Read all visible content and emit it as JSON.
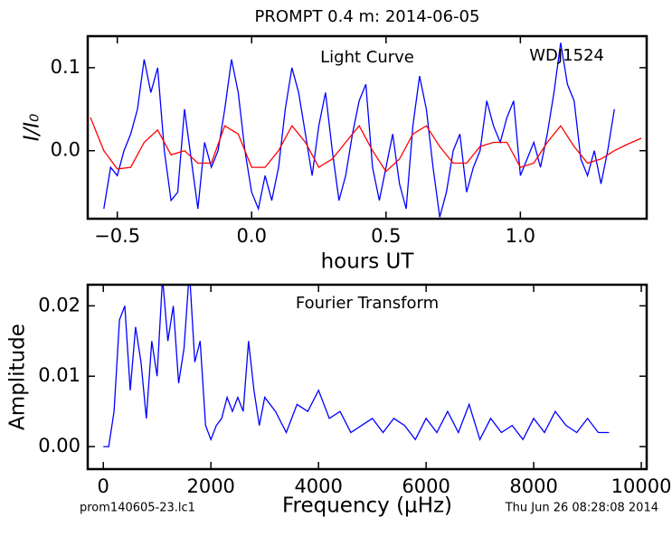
{
  "chart_data": [
    {
      "type": "line",
      "title": "PROMPT 0.4 m:  2014-06-05",
      "annotations": [
        "Light Curve",
        "WDJ1524"
      ],
      "xlabel": "hours UT",
      "ylabel": "I/I₀",
      "xlim": [
        -0.61,
        1.47
      ],
      "ylim": [
        -0.082,
        0.138
      ],
      "xticks": [
        {
          "value": -0.5,
          "label": "−0.5"
        },
        {
          "value": 0,
          "label": "0.0"
        },
        {
          "value": 0.5,
          "label": "0.5"
        },
        {
          "value": 1,
          "label": "1.0"
        }
      ],
      "yticks": [
        {
          "value": 0,
          "label": "0.0"
        },
        0.1
      ],
      "series": [
        {
          "color": "#0000ff",
          "x": [
            -0.55,
            -0.525,
            -0.5,
            -0.475,
            -0.45,
            -0.425,
            -0.4,
            -0.375,
            -0.35,
            -0.325,
            -0.3,
            -0.275,
            -0.25,
            -0.225,
            -0.2,
            -0.175,
            -0.15,
            -0.125,
            -0.1,
            -0.075,
            -0.05,
            -0.025,
            0,
            0.025,
            0.05,
            0.075,
            0.1,
            0.125,
            0.15,
            0.175,
            0.2,
            0.225,
            0.25,
            0.275,
            0.3,
            0.325,
            0.35,
            0.375,
            0.4,
            0.425,
            0.45,
            0.475,
            0.5,
            0.525,
            0.55,
            0.575,
            0.6,
            0.625,
            0.65,
            0.675,
            0.7,
            0.725,
            0.75,
            0.775,
            0.8,
            0.825,
            0.85,
            0.875,
            0.9,
            0.925,
            0.95,
            0.975,
            1,
            1.025,
            1.05,
            1.075,
            1.1,
            1.125,
            1.15,
            1.175,
            1.2,
            1.225,
            1.25,
            1.275,
            1.3,
            1.325,
            1.35
          ],
          "values": [
            -0.07,
            -0.02,
            -0.03,
            0,
            0.02,
            0.05,
            0.11,
            0.07,
            0.1,
            0,
            -0.06,
            -0.05,
            0.05,
            -0.01,
            -0.07,
            0.01,
            -0.02,
            0,
            0.05,
            0.11,
            0.07,
            0,
            -0.05,
            -0.07,
            -0.03,
            -0.06,
            -0.02,
            0.05,
            0.1,
            0.07,
            0.02,
            -0.03,
            0.03,
            0.07,
            0,
            -0.06,
            -0.03,
            0.02,
            0.06,
            0.08,
            -0.02,
            -0.06,
            -0.02,
            0.02,
            -0.04,
            -0.07,
            0.03,
            0.09,
            0.05,
            -0.02,
            -0.08,
            -0.05,
            0,
            0.02,
            -0.05,
            -0.02,
            0,
            0.06,
            0.03,
            0.01,
            0.04,
            0.06,
            -0.03,
            -0.01,
            0.01,
            -0.02,
            0.02,
            0.07,
            0.13,
            0.08,
            0.06,
            -0.01,
            -0.03,
            0,
            -0.04,
            0,
            0.05
          ]
        },
        {
          "color": "#ff0000",
          "x": [
            -0.6,
            -0.55,
            -0.5,
            -0.45,
            -0.4,
            -0.35,
            -0.3,
            -0.25,
            -0.2,
            -0.15,
            -0.1,
            -0.05,
            0,
            0.05,
            0.1,
            0.15,
            0.2,
            0.25,
            0.3,
            0.35,
            0.4,
            0.45,
            0.5,
            0.55,
            0.6,
            0.65,
            0.7,
            0.75,
            0.8,
            0.85,
            0.9,
            0.95,
            1,
            1.05,
            1.1,
            1.15,
            1.2,
            1.25,
            1.3,
            1.35,
            1.4,
            1.45
          ],
          "values": [
            0.04,
            0,
            -0.022,
            -0.02,
            0.01,
            0.025,
            -0.005,
            0,
            -0.015,
            -0.015,
            0.03,
            0.02,
            -0.02,
            -0.02,
            0,
            0.03,
            0.01,
            -0.02,
            -0.01,
            0.01,
            0.03,
            0,
            -0.025,
            -0.01,
            0.02,
            0.03,
            0.005,
            -0.015,
            -0.015,
            0.005,
            0.01,
            0.01,
            -0.02,
            -0.015,
            0.01,
            0.03,
            0.005,
            -0.015,
            -0.01,
            0,
            0.008,
            0.015
          ]
        }
      ]
    },
    {
      "type": "line",
      "annotations": [
        "Fourier Transform"
      ],
      "xlabel": "Frequency (μHz)",
      "ylabel": "Amplitude",
      "xlim": [
        -290,
        10100
      ],
      "ylim": [
        -0.0032,
        0.023
      ],
      "xticks": [
        0,
        2000,
        4000,
        6000,
        8000,
        10000
      ],
      "yticks": [
        {
          "value": 0,
          "label": "0.00"
        },
        {
          "value": 0.01,
          "label": "0.01"
        },
        {
          "value": 0.02,
          "label": "0.02"
        }
      ],
      "series": [
        {
          "color": "#0000ff",
          "x": [
            0,
            100,
            200,
            300,
            400,
            500,
            600,
            700,
            800,
            900,
            1000,
            1100,
            1200,
            1300,
            1400,
            1500,
            1600,
            1700,
            1800,
            1900,
            2000,
            2100,
            2200,
            2300,
            2400,
            2500,
            2600,
            2700,
            2800,
            2900,
            3000,
            3200,
            3400,
            3600,
            3800,
            4000,
            4200,
            4400,
            4600,
            4800,
            5000,
            5200,
            5400,
            5600,
            5800,
            6000,
            6200,
            6400,
            6600,
            6800,
            7000,
            7200,
            7400,
            7600,
            7800,
            8000,
            8200,
            8400,
            8600,
            8800,
            9000,
            9200,
            9400
          ],
          "values": [
            0,
            0,
            0.005,
            0.018,
            0.02,
            0.008,
            0.017,
            0.012,
            0.004,
            0.015,
            0.01,
            0.024,
            0.015,
            0.02,
            0.009,
            0.014,
            0.025,
            0.012,
            0.015,
            0.003,
            0.001,
            0.003,
            0.004,
            0.007,
            0.005,
            0.007,
            0.005,
            0.015,
            0.008,
            0.003,
            0.007,
            0.005,
            0.002,
            0.006,
            0.005,
            0.008,
            0.004,
            0.005,
            0.002,
            0.003,
            0.004,
            0.002,
            0.004,
            0.003,
            0.001,
            0.004,
            0.002,
            0.005,
            0.002,
            0.006,
            0.001,
            0.004,
            0.002,
            0.003,
            0.001,
            0.004,
            0.002,
            0.005,
            0.003,
            0.002,
            0.004,
            0.002,
            0.002
          ]
        }
      ]
    }
  ],
  "footer": {
    "left": "prom140605-23.lc1",
    "right": "Thu Jun 26 08:28:08 2014"
  }
}
